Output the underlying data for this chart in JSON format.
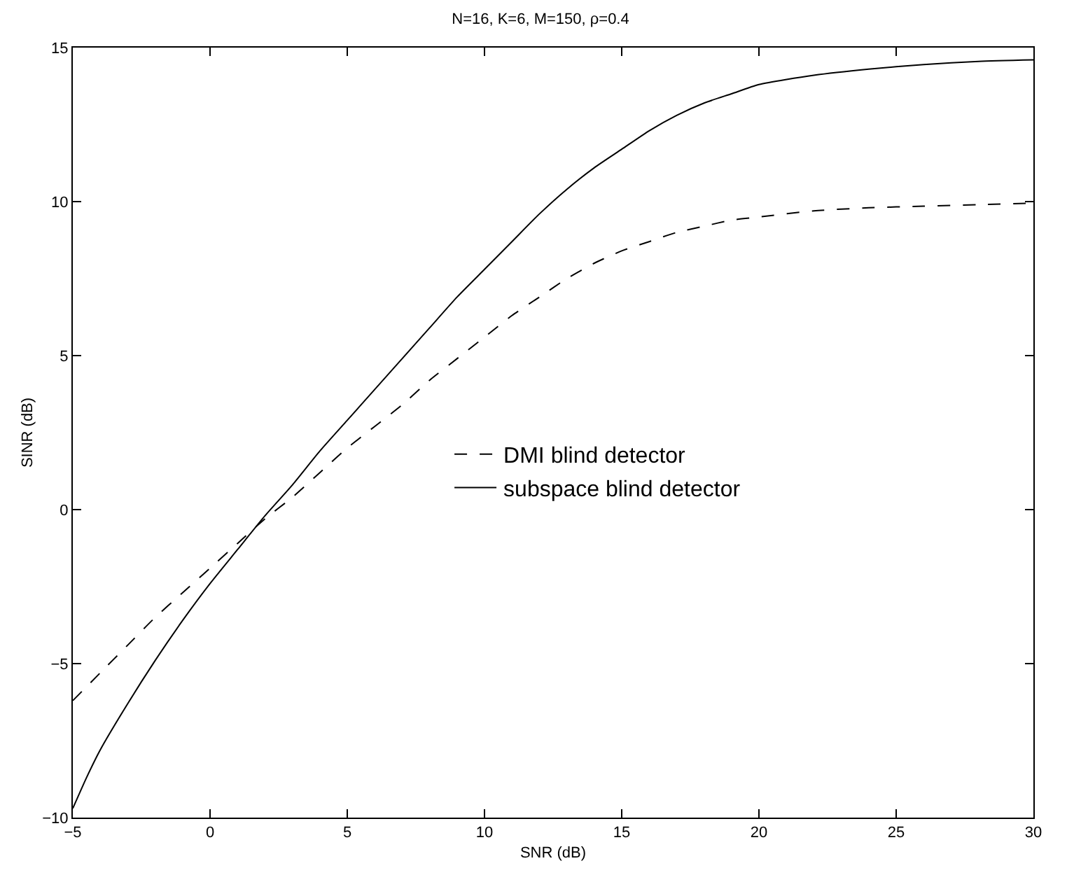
{
  "chart_data": {
    "type": "line",
    "title": "N=16, K=6, M=150, ρ=0.4",
    "xlabel": "SNR (dB)",
    "ylabel": "SINR (dB)",
    "xlim": [
      -5,
      30
    ],
    "xticks": [
      -5,
      0,
      5,
      10,
      15,
      20,
      25,
      30
    ],
    "ylim": [
      -10,
      15
    ],
    "yticks": [
      -10,
      -5,
      0,
      5,
      10,
      15
    ],
    "grid": false,
    "legend": "right",
    "marker": "none",
    "series": [
      {
        "name": "DMI blind detector",
        "color": "#000000",
        "line_style": "dashed",
        "x": [
          -5,
          -4,
          -3,
          -2,
          -1,
          0,
          1,
          2,
          3,
          4,
          5,
          6,
          7,
          8,
          9,
          10,
          11,
          12,
          13,
          14,
          15,
          16,
          17,
          18,
          19,
          20,
          22,
          24,
          26,
          28,
          30
        ],
        "values": [
          -6.2,
          -5.3,
          -4.4,
          -3.5,
          -2.7,
          -1.9,
          -1.1,
          -0.3,
          0.4,
          1.2,
          2.0,
          2.7,
          3.4,
          4.2,
          4.9,
          5.6,
          6.3,
          6.9,
          7.5,
          8.0,
          8.4,
          8.7,
          9.0,
          9.2,
          9.4,
          9.5,
          9.7,
          9.8,
          9.85,
          9.9,
          9.95
        ]
      },
      {
        "name": "subspace blind detector",
        "color": "#000000",
        "line_style": "solid",
        "x": [
          -5,
          -4.5,
          -4,
          -3,
          -2,
          -1,
          0,
          1,
          2,
          3,
          4,
          5,
          6,
          7,
          8,
          9,
          10,
          11,
          12,
          13,
          14,
          15,
          16,
          17,
          18,
          19,
          20,
          22,
          24,
          26,
          28,
          30
        ],
        "values": [
          -9.7,
          -8.7,
          -7.8,
          -6.3,
          -4.9,
          -3.6,
          -2.4,
          -1.3,
          -0.2,
          0.8,
          1.9,
          2.9,
          3.9,
          4.9,
          5.9,
          6.9,
          7.8,
          8.7,
          9.6,
          10.4,
          11.1,
          11.7,
          12.3,
          12.8,
          13.2,
          13.5,
          13.8,
          14.1,
          14.3,
          14.45,
          14.55,
          14.6
        ]
      }
    ]
  }
}
